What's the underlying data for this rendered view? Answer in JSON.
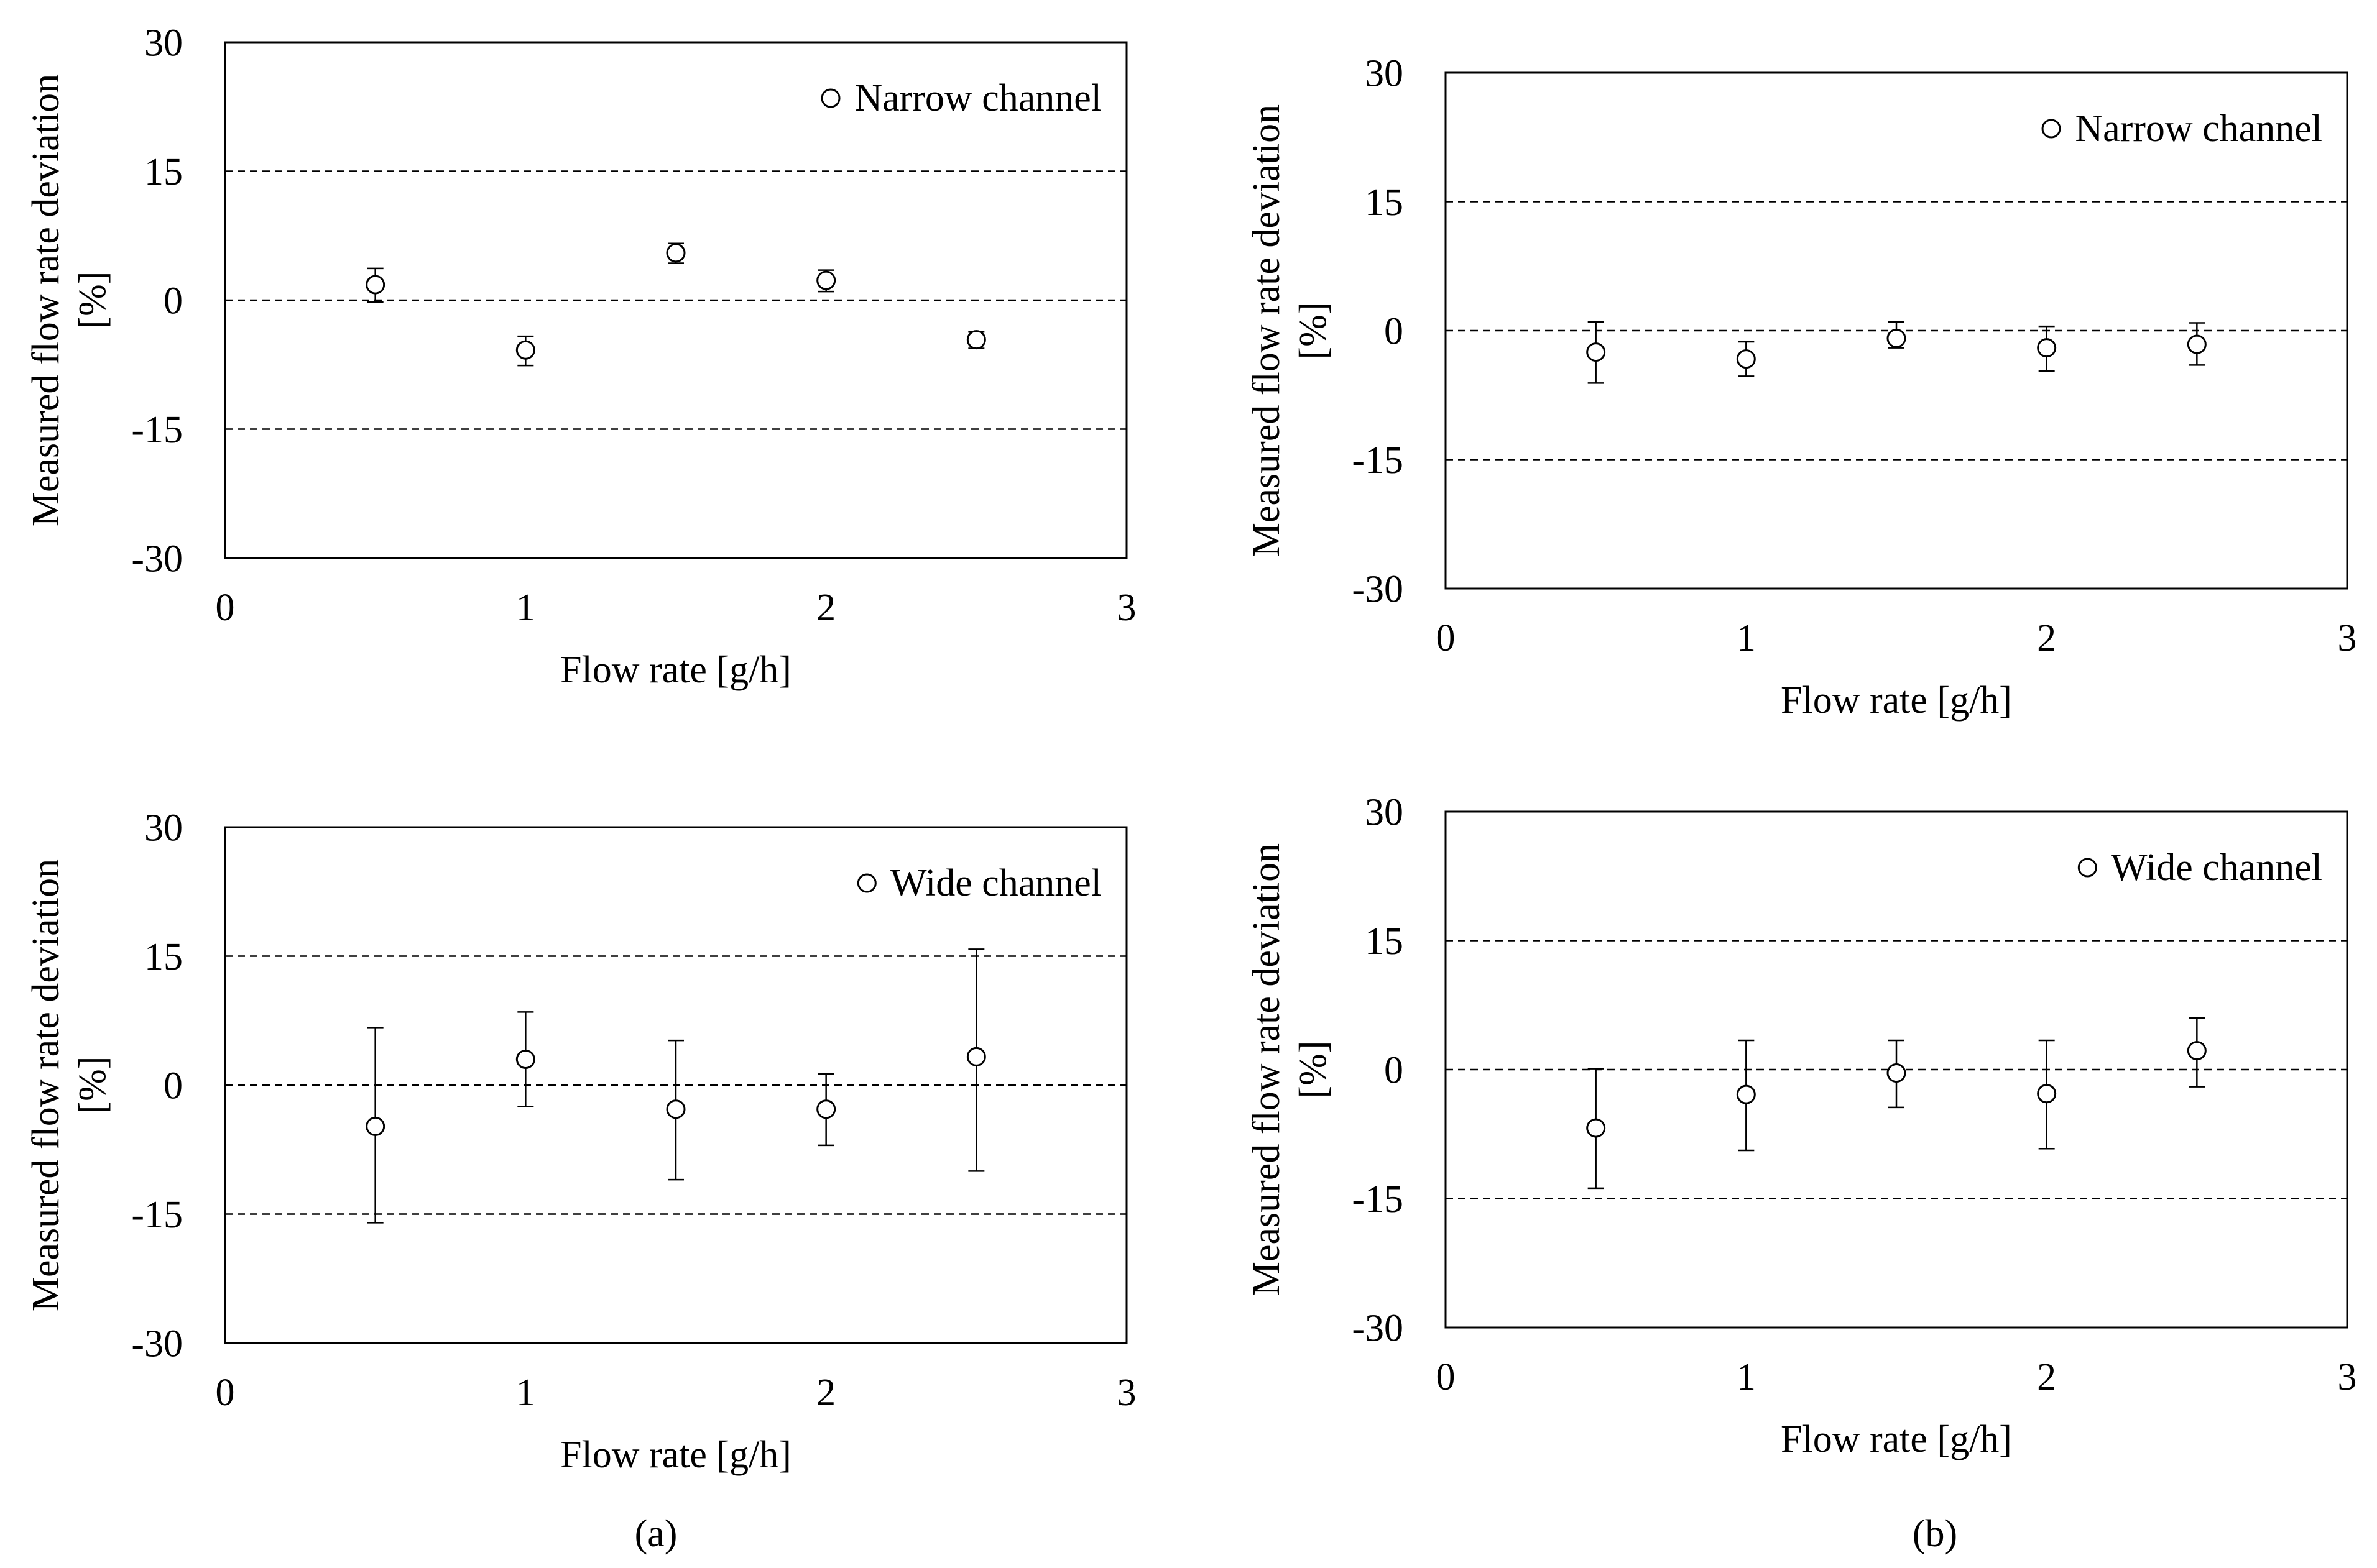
{
  "chart_data": [
    {
      "type": "scatter",
      "panel": "a",
      "title": "",
      "legend": "Narrow channel",
      "legend_position": "top-right",
      "xlabel": "Flow rate [g/h]",
      "ylabel": "Measured flow rate deviation [%]",
      "xlim": [
        0,
        3
      ],
      "ylim": [
        -30,
        30
      ],
      "xticks": [
        0,
        1,
        2,
        3
      ],
      "yticks": [
        30,
        15,
        0,
        -15,
        -30
      ],
      "reference_lines": [
        15,
        0,
        -15
      ],
      "series": [
        {
          "name": "Narrow channel",
          "x": [
            0.5,
            1.0,
            1.5,
            2.0,
            2.5
          ],
          "y": [
            1.8,
            -5.8,
            5.5,
            2.3,
            -4.6
          ],
          "err_low": [
            2.0,
            1.8,
            1.2,
            1.3,
            1.0
          ],
          "err_high": [
            1.9,
            1.6,
            1.1,
            1.2,
            0.9
          ]
        }
      ]
    },
    {
      "type": "scatter",
      "panel": "b",
      "title": "",
      "legend": "Narrow channel",
      "legend_position": "top-right",
      "xlabel": "Flow rate [g/h]",
      "ylabel": "Measured flow rate deviation [%]",
      "xlim": [
        0,
        3
      ],
      "ylim": [
        -30,
        30
      ],
      "xticks": [
        0,
        1,
        2,
        3
      ],
      "yticks": [
        30,
        15,
        0,
        -15,
        -30
      ],
      "reference_lines": [
        15,
        0,
        -15
      ],
      "series": [
        {
          "name": "Narrow channel",
          "x": [
            0.5,
            1.0,
            1.5,
            2.0,
            2.5
          ],
          "y": [
            -2.5,
            -3.3,
            -0.9,
            -2.0,
            -1.6
          ],
          "err_low": [
            3.6,
            2.0,
            1.1,
            2.7,
            2.4
          ],
          "err_high": [
            3.5,
            2.0,
            1.9,
            2.5,
            2.5
          ]
        }
      ]
    },
    {
      "type": "scatter",
      "panel": "a",
      "title": "",
      "legend": "Wide channel",
      "legend_position": "top-right",
      "xlabel": "Flow rate [g/h]",
      "ylabel": "Measured flow rate deviation [%]",
      "xlim": [
        0,
        3
      ],
      "ylim": [
        -30,
        30
      ],
      "xticks": [
        0,
        1,
        2,
        3
      ],
      "yticks": [
        30,
        15,
        0,
        -15,
        -30
      ],
      "reference_lines": [
        15,
        0,
        -15
      ],
      "series": [
        {
          "name": "Wide channel",
          "x": [
            0.5,
            1.0,
            1.5,
            2.0,
            2.5
          ],
          "y": [
            -4.8,
            3.0,
            -2.8,
            -2.8,
            3.3
          ],
          "err_low": [
            11.2,
            5.5,
            8.2,
            4.2,
            13.3
          ],
          "err_high": [
            11.5,
            5.5,
            8.0,
            4.1,
            12.5
          ]
        }
      ]
    },
    {
      "type": "scatter",
      "panel": "b",
      "title": "",
      "legend": "Wide channel",
      "legend_position": "top-right",
      "xlabel": "Flow rate [g/h]",
      "ylabel": "Measured flow rate deviation [%]",
      "xlim": [
        0,
        3
      ],
      "ylim": [
        -30,
        30
      ],
      "xticks": [
        0,
        1,
        2,
        3
      ],
      "yticks": [
        30,
        15,
        0,
        -15,
        -30
      ],
      "reference_lines": [
        15,
        0,
        -15
      ],
      "series": [
        {
          "name": "Wide channel",
          "x": [
            0.5,
            1.0,
            1.5,
            2.0,
            2.5
          ],
          "y": [
            -6.8,
            -2.9,
            -0.4,
            -2.8,
            2.2
          ],
          "err_low": [
            7.0,
            6.5,
            4.0,
            6.4,
            4.2
          ],
          "err_high": [
            6.9,
            6.3,
            3.8,
            6.2,
            3.8
          ]
        }
      ]
    }
  ],
  "captions": {
    "left": "(a)",
    "right": "(b)"
  }
}
